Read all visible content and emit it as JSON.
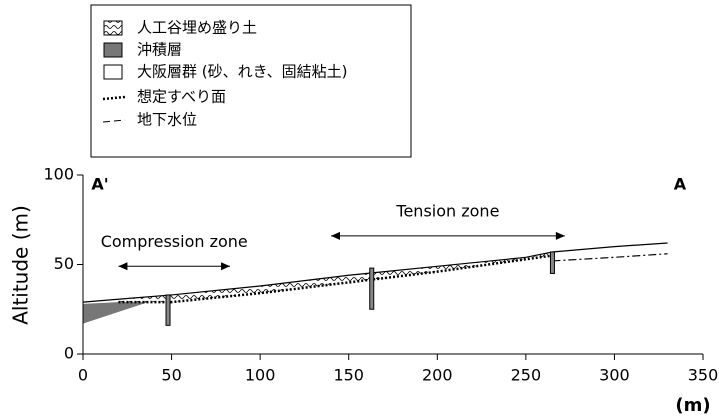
{
  "chart_data": {
    "type": "profile",
    "legend": [
      "人工谷埋め盛り土",
      "沖積層",
      "大阪層群 (砂、れき、固結粘土)",
      "想定すべり面",
      "地下水位"
    ],
    "ylabel": "Altitude (m)",
    "xlabel": "(m)",
    "section_start": "A'",
    "section_end": "A",
    "xlim": [
      0,
      350
    ],
    "ylim": [
      0,
      100
    ],
    "xticks": [
      0,
      50,
      100,
      150,
      200,
      250,
      300,
      350
    ],
    "yticks": [
      0,
      50,
      100
    ],
    "zones": [
      {
        "label": "Compression zone",
        "from": 20,
        "to": 83,
        "y": 49
      },
      {
        "label": "Tension zone",
        "from": 140,
        "to": 272,
        "y": 66
      }
    ],
    "ground_surface": {
      "x": [
        0,
        25,
        50,
        100,
        150,
        200,
        250,
        265,
        300,
        330
      ],
      "y": [
        29,
        31,
        33,
        38,
        44,
        49,
        54,
        57,
        60,
        62
      ]
    },
    "slip_surface": {
      "x": [
        20,
        50,
        100,
        150,
        200,
        265
      ],
      "y": [
        29,
        29,
        34,
        40,
        46,
        55
      ]
    },
    "groundwater": {
      "x": [
        265,
        300,
        330
      ],
      "y": [
        52,
        54,
        56
      ]
    },
    "alluvium": {
      "x": [
        0,
        0,
        40
      ],
      "y": [
        17,
        28,
        30
      ]
    },
    "boreholes": {
      "x": [
        48,
        163,
        265
      ],
      "top": [
        33,
        48,
        57
      ],
      "bottom": [
        16,
        25,
        45
      ]
    }
  }
}
